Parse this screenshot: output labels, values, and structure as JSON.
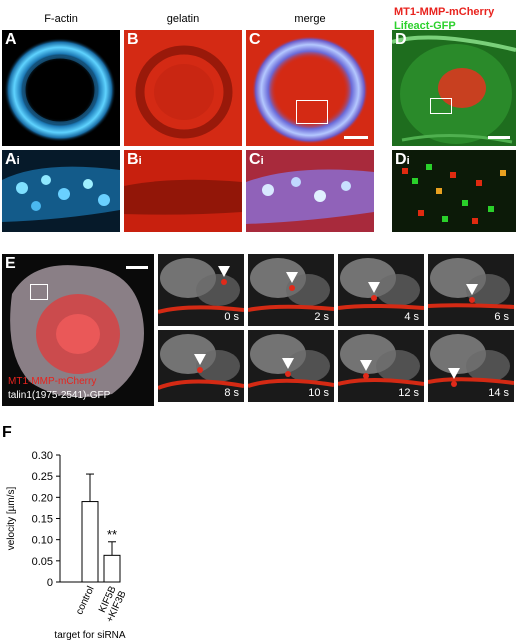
{
  "headers": {
    "a": "F-actin",
    "b": "gelatin",
    "c": "merge",
    "d_line1": "MT1-MMP-mCherry",
    "d_line2": "Lifeact-GFP",
    "e_line1": "MT1-MMP-mCherry",
    "e_line2": "talin1(1975-2541)-GFP"
  },
  "panel_labels": {
    "a": "A",
    "b": "B",
    "c": "C",
    "d": "D",
    "ai": "A",
    "bi": "B",
    "ci": "C",
    "di": "D",
    "sub": "i",
    "e": "E",
    "f": "F"
  },
  "colors": {
    "d_line1": "#e8231e",
    "d_line2": "#2dd12d",
    "e_line1": "#e8231e",
    "e_line2": "#ffffff",
    "bar_fill": "#ffffff",
    "bar_stroke": "#000000"
  },
  "timelapse": {
    "times": [
      "0 s",
      "2 s",
      "4 s",
      "6 s",
      "8 s",
      "10 s",
      "12 s",
      "14 s"
    ]
  },
  "chart_data": {
    "type": "bar",
    "categories": [
      "control",
      "KIF5B\n+KIF3B"
    ],
    "values": [
      0.19,
      0.063
    ],
    "errors": [
      0.065,
      0.032
    ],
    "significance": [
      "",
      "**"
    ],
    "ylabel": "velocity [µm/s]",
    "xlabel": "target for siRNA",
    "ylim": [
      0,
      0.3
    ],
    "yticks": [
      "0",
      "0.05",
      "0.10",
      "0.15",
      "0.20",
      "0.25",
      "0.30"
    ]
  }
}
